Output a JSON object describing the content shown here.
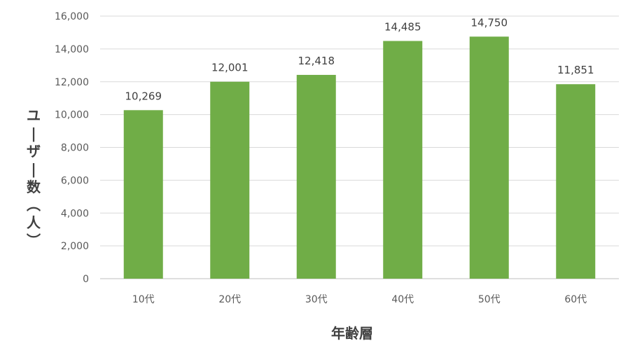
{
  "chart_data": {
    "type": "bar",
    "categories": [
      "10代",
      "20代",
      "30代",
      "40代",
      "50代",
      "60代"
    ],
    "values": [
      10269,
      12001,
      12418,
      14485,
      14750,
      11851
    ],
    "data_labels": [
      "10,269",
      "12,001",
      "12,418",
      "14,485",
      "14,750",
      "11,851"
    ],
    "title": "",
    "xlabel": "年齢層",
    "ylabel": "ユーザー数（人）",
    "ylim": [
      0,
      16000
    ],
    "yticks": [
      0,
      2000,
      4000,
      6000,
      8000,
      10000,
      12000,
      14000,
      16000
    ],
    "ytick_labels": [
      "0",
      "2,000",
      "4,000",
      "6,000",
      "8,000",
      "10,000",
      "12,000",
      "14,000",
      "16,000"
    ],
    "grid": true,
    "legend": "none",
    "colors": {
      "bar": "#70AD47",
      "grid": "#D9D9D9",
      "axis": "#BFBFBF"
    }
  }
}
